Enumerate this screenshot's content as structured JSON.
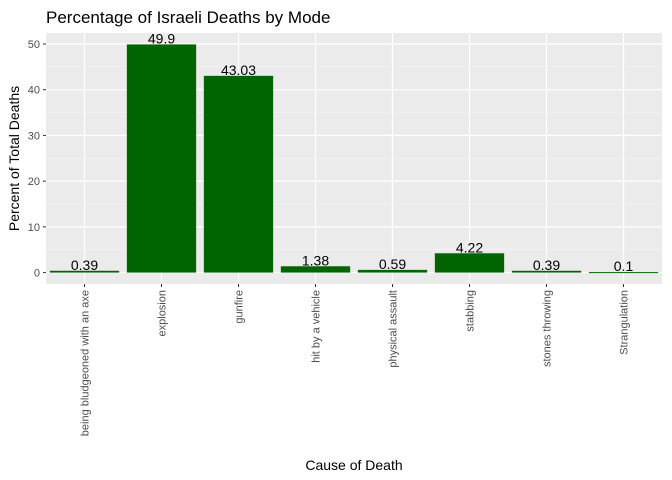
{
  "chart_data": {
    "type": "bar",
    "title": "Percentage of Israeli Deaths by Mode",
    "xlabel": "Cause of Death",
    "ylabel": "Percent of Total Deaths",
    "categories": [
      "being bludgeoned with an axe",
      "explosion",
      "gunfire",
      "hit by a vehicle",
      "physical assault",
      "stabbing",
      "stones throwing",
      "Strangulation"
    ],
    "values": [
      0.39,
      49.9,
      43.03,
      1.38,
      0.59,
      4.22,
      0.39,
      0.1
    ],
    "data_labels": [
      "0.39",
      "49.9",
      "43.03",
      "1.38",
      "0.59",
      "4.22",
      "0.39",
      "0.1"
    ],
    "ylim": [
      -2.5,
      52.4
    ],
    "y_ticks": [
      0,
      10,
      20,
      30,
      40,
      50
    ],
    "y_tick_labels": [
      "0",
      "10",
      "20",
      "30",
      "40",
      "50"
    ],
    "grid": true,
    "legend": "none",
    "colors": {
      "bar": "#006400",
      "panel": "#ebebeb",
      "grid_major": "#ffffff",
      "grid_minor": "#f5f5f5",
      "tick": "#333333"
    }
  }
}
